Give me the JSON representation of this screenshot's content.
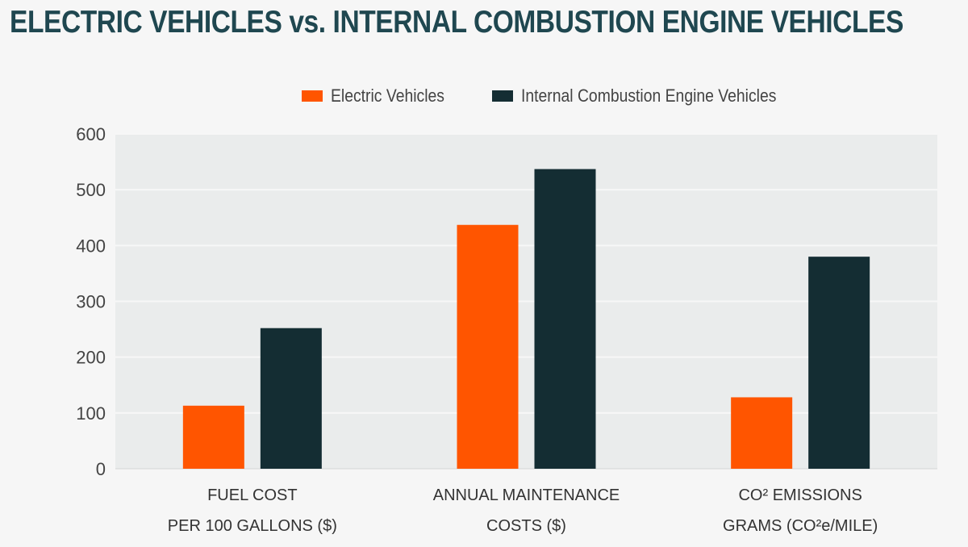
{
  "title": "ELECTRIC VEHICLES vs. INTERNAL COMBUSTION ENGINE VEHICLES",
  "colors": {
    "ev": "#ff5500",
    "ice": "#142d33",
    "plot_bg": "#eaecec",
    "grid": "#f7f7f7"
  },
  "chart_data": {
    "type": "bar",
    "categories": [
      [
        "FUEL COST",
        "PER 100 GALLONS ($)"
      ],
      [
        "ANNUAL MAINTENANCE",
        "COSTS ($)"
      ],
      [
        "CO² EMISSIONS",
        "GRAMS (CO²e/MILE)"
      ]
    ],
    "series": [
      {
        "name": "Electric Vehicles",
        "values": [
          113,
          437,
          128
        ]
      },
      {
        "name": "Internal Combustion Engine Vehicles",
        "values": [
          252,
          537,
          380
        ]
      }
    ],
    "ylim": [
      0,
      600
    ],
    "yticks": [
      0,
      100,
      200,
      300,
      400,
      500,
      600
    ],
    "grid": true,
    "legend": "top-center"
  }
}
